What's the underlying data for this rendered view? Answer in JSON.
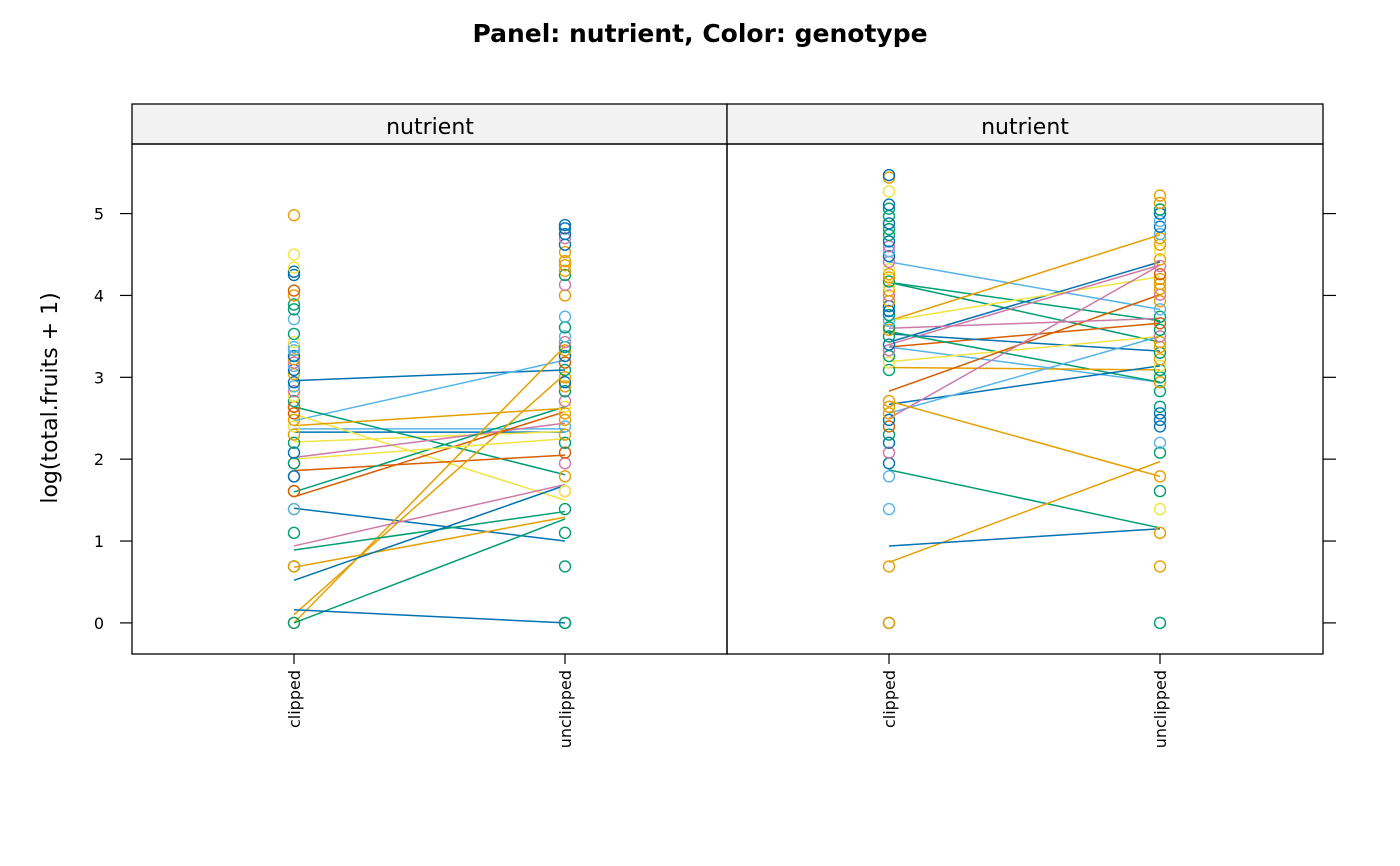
{
  "chart_data": {
    "type": "scatter",
    "title": "Panel: nutrient, Color: genotype",
    "xlabel": "",
    "ylabel": "log(total.fruits + 1)",
    "x_categories": [
      "clipped",
      "unclipped"
    ],
    "ylim": [
      -0.38,
      5.85
    ],
    "y_ticks": [
      0,
      1,
      2,
      3,
      4,
      5
    ],
    "grid": false,
    "legend": "none",
    "panel_colors": {
      "strip_bg": "#f2f2f2",
      "border": "#000000"
    },
    "palette": [
      "#0072B2",
      "#56B4E9",
      "#009E73",
      "#E69F00",
      "#F0E442",
      "#D55E00",
      "#CC79A7"
    ],
    "panels": [
      {
        "strip": "nutrient",
        "points": {
          "clipped": [
            [
              0,
              3
            ],
            [
              0,
              2
            ],
            [
              0.69,
              2
            ],
            [
              0.69,
              3
            ],
            [
              1.1,
              2
            ],
            [
              1.39,
              3
            ],
            [
              1.39,
              1
            ],
            [
              1.61,
              3
            ],
            [
              1.61,
              5
            ],
            [
              1.79,
              6
            ],
            [
              1.79,
              0
            ],
            [
              1.95,
              6
            ],
            [
              1.95,
              2
            ],
            [
              2.08,
              0
            ],
            [
              2.2,
              4
            ],
            [
              2.2,
              2
            ],
            [
              2.3,
              3
            ],
            [
              2.4,
              4
            ],
            [
              2.48,
              3
            ],
            [
              2.56,
              5
            ],
            [
              2.64,
              3
            ],
            [
              2.64,
              5
            ],
            [
              2.71,
              2
            ],
            [
              2.77,
              4
            ],
            [
              2.83,
              6
            ],
            [
              2.89,
              1
            ],
            [
              2.94,
              0
            ],
            [
              3.04,
              3
            ],
            [
              3.09,
              0
            ],
            [
              3.14,
              1
            ],
            [
              3.18,
              6
            ],
            [
              3.22,
              3
            ],
            [
              3.26,
              0
            ],
            [
              3.33,
              1
            ],
            [
              3.37,
              1
            ],
            [
              3.43,
              4
            ],
            [
              3.53,
              2
            ],
            [
              3.71,
              1
            ],
            [
              3.83,
              2
            ],
            [
              3.89,
              2
            ],
            [
              4.0,
              3
            ],
            [
              4.06,
              5
            ],
            [
              4.25,
              0
            ],
            [
              4.29,
              0
            ],
            [
              4.34,
              4
            ],
            [
              4.5,
              4
            ],
            [
              4.98,
              3
            ]
          ],
          "unclipped": [
            [
              0,
              0
            ],
            [
              0,
              2
            ],
            [
              0.69,
              2
            ],
            [
              1.1,
              2
            ],
            [
              1.39,
              2
            ],
            [
              1.61,
              6
            ],
            [
              1.61,
              4
            ],
            [
              1.79,
              3
            ],
            [
              1.95,
              6
            ],
            [
              2.08,
              5
            ],
            [
              2.2,
              2
            ],
            [
              2.3,
              3
            ],
            [
              2.4,
              1
            ],
            [
              2.48,
              3
            ],
            [
              2.56,
              3
            ],
            [
              2.64,
              4
            ],
            [
              2.71,
              6
            ],
            [
              2.83,
              2
            ],
            [
              2.89,
              3
            ],
            [
              2.94,
              0
            ],
            [
              3.0,
              3
            ],
            [
              3.09,
              2
            ],
            [
              3.18,
              5
            ],
            [
              3.26,
              0
            ],
            [
              3.33,
              3
            ],
            [
              3.37,
              2
            ],
            [
              3.43,
              6
            ],
            [
              3.5,
              1
            ],
            [
              3.61,
              2
            ],
            [
              3.74,
              1
            ],
            [
              4.0,
              3
            ],
            [
              4.13,
              6
            ],
            [
              4.25,
              2
            ],
            [
              4.3,
              3
            ],
            [
              4.37,
              3
            ],
            [
              4.42,
              3
            ],
            [
              4.53,
              3
            ],
            [
              4.62,
              0
            ],
            [
              4.7,
              6
            ],
            [
              4.75,
              0
            ],
            [
              4.82,
              0
            ],
            [
              4.86,
              0
            ]
          ]
        },
        "lines": [
          {
            "c": 0,
            "y": [
              2.96,
              3.09
            ]
          },
          {
            "c": 1,
            "y": [
              2.47,
              3.21
            ]
          },
          {
            "c": 1,
            "y": [
              2.37,
              2.37
            ]
          },
          {
            "c": 0,
            "y": [
              2.33,
              2.33
            ]
          },
          {
            "c": 4,
            "y": [
              2.21,
              2.34
            ]
          },
          {
            "c": 2,
            "y": [
              2.64,
              1.81
            ]
          },
          {
            "c": 4,
            "y": [
              2.55,
              1.5
            ]
          },
          {
            "c": 6,
            "y": [
              2.02,
              2.44
            ]
          },
          {
            "c": 5,
            "y": [
              1.86,
              2.05
            ]
          },
          {
            "c": 5,
            "y": [
              1.54,
              2.58
            ]
          },
          {
            "c": 2,
            "y": [
              1.6,
              2.64
            ]
          },
          {
            "c": 0,
            "y": [
              1.4,
              1.0
            ]
          },
          {
            "c": 3,
            "y": [
              0.0,
              3.38
            ]
          },
          {
            "c": 3,
            "y": [
              0.1,
              3.04
            ]
          },
          {
            "c": 6,
            "y": [
              0.94,
              1.69
            ]
          },
          {
            "c": 2,
            "y": [
              0.89,
              1.36
            ]
          },
          {
            "c": 3,
            "y": [
              0.68,
              1.29
            ]
          },
          {
            "c": 0,
            "y": [
              0.52,
              1.68
            ]
          },
          {
            "c": 2,
            "y": [
              0.0,
              1.27
            ]
          },
          {
            "c": 0,
            "y": [
              0.16,
              0.0
            ]
          },
          {
            "c": 4,
            "y": [
              2.0,
              2.25
            ]
          },
          {
            "c": 3,
            "y": [
              2.41,
              2.62
            ]
          }
        ]
      },
      {
        "strip": "nutrient",
        "points": {
          "clipped": [
            [
              0,
              2
            ],
            [
              0,
              3
            ],
            [
              0.69,
              3
            ],
            [
              1.39,
              1
            ],
            [
              1.79,
              1
            ],
            [
              1.95,
              0
            ],
            [
              2.08,
              6
            ],
            [
              2.2,
              0
            ],
            [
              2.3,
              2
            ],
            [
              2.4,
              5
            ],
            [
              2.48,
              0
            ],
            [
              2.56,
              3
            ],
            [
              2.64,
              3
            ],
            [
              2.71,
              3
            ],
            [
              3.09,
              2
            ],
            [
              3.18,
              4
            ],
            [
              3.26,
              2
            ],
            [
              3.33,
              6
            ],
            [
              3.4,
              0
            ],
            [
              3.5,
              2
            ],
            [
              3.58,
              3
            ],
            [
              3.61,
              2
            ],
            [
              3.69,
              1
            ],
            [
              3.76,
              2
            ],
            [
              3.81,
              0
            ],
            [
              3.87,
              0
            ],
            [
              3.93,
              3
            ],
            [
              4.0,
              6
            ],
            [
              4.06,
              3
            ],
            [
              4.11,
              4
            ],
            [
              4.17,
              2
            ],
            [
              4.22,
              3
            ],
            [
              4.26,
              3
            ],
            [
              4.32,
              4
            ],
            [
              4.41,
              6
            ],
            [
              4.48,
              0
            ],
            [
              4.54,
              1
            ],
            [
              4.6,
              6
            ],
            [
              4.66,
              0
            ],
            [
              4.74,
              2
            ],
            [
              4.81,
              2
            ],
            [
              4.88,
              0
            ],
            [
              4.97,
              2
            ],
            [
              5.06,
              2
            ],
            [
              5.11,
              0
            ],
            [
              5.27,
              4
            ],
            [
              5.44,
              3
            ],
            [
              5.47,
              0
            ]
          ],
          "unclipped": [
            [
              0,
              2
            ],
            [
              0.69,
              3
            ],
            [
              1.1,
              3
            ],
            [
              1.39,
              4
            ],
            [
              1.61,
              2
            ],
            [
              1.79,
              3
            ],
            [
              2.08,
              2
            ],
            [
              2.2,
              1
            ],
            [
              2.4,
              0
            ],
            [
              2.48,
              0
            ],
            [
              2.56,
              0
            ],
            [
              2.64,
              2
            ],
            [
              2.83,
              2
            ],
            [
              2.94,
              3
            ],
            [
              3.0,
              2
            ],
            [
              3.09,
              2
            ],
            [
              3.14,
              4
            ],
            [
              3.22,
              3
            ],
            [
              3.3,
              2
            ],
            [
              3.37,
              3
            ],
            [
              3.43,
              3
            ],
            [
              3.5,
              6
            ],
            [
              3.58,
              2
            ],
            [
              3.66,
              5
            ],
            [
              3.74,
              2
            ],
            [
              3.83,
              1
            ],
            [
              3.93,
              3
            ],
            [
              4.01,
              6
            ],
            [
              4.08,
              3
            ],
            [
              4.14,
              3
            ],
            [
              4.2,
              3
            ],
            [
              4.26,
              5
            ],
            [
              4.36,
              6
            ],
            [
              4.44,
              3
            ],
            [
              4.55,
              4
            ],
            [
              4.62,
              3
            ],
            [
              4.7,
              3
            ],
            [
              4.75,
              1
            ],
            [
              4.84,
              0
            ],
            [
              4.91,
              1
            ],
            [
              5.0,
              0
            ],
            [
              5.05,
              2
            ],
            [
              5.13,
              3
            ],
            [
              5.22,
              3
            ]
          ]
        },
        "lines": [
          {
            "c": 1,
            "y": [
              4.41,
              3.83
            ]
          },
          {
            "c": 2,
            "y": [
              4.16,
              3.69
            ]
          },
          {
            "c": 2,
            "y": [
              4.16,
              3.43
            ]
          },
          {
            "c": 3,
            "y": [
              3.69,
              4.74
            ]
          },
          {
            "c": 0,
            "y": [
              3.43,
              4.41
            ]
          },
          {
            "c": 4,
            "y": [
              3.69,
              4.23
            ]
          },
          {
            "c": 5,
            "y": [
              3.37,
              3.66
            ]
          },
          {
            "c": 0,
            "y": [
              3.53,
              3.32
            ]
          },
          {
            "c": 6,
            "y": [
              3.4,
              4.37
            ]
          },
          {
            "c": 1,
            "y": [
              3.37,
              2.94
            ]
          },
          {
            "c": 2,
            "y": [
              3.56,
              2.94
            ]
          },
          {
            "c": 4,
            "y": [
              3.19,
              3.5
            ]
          },
          {
            "c": 3,
            "y": [
              3.12,
              3.09
            ]
          },
          {
            "c": 5,
            "y": [
              2.83,
              4.01
            ]
          },
          {
            "c": 0,
            "y": [
              2.67,
              3.14
            ]
          },
          {
            "c": 1,
            "y": [
              2.56,
              3.5
            ]
          },
          {
            "c": 6,
            "y": [
              2.5,
              4.37
            ]
          },
          {
            "c": 3,
            "y": [
              2.71,
              1.79
            ]
          },
          {
            "c": 2,
            "y": [
              1.87,
              1.16
            ]
          },
          {
            "c": 3,
            "y": [
              0.74,
              1.97
            ]
          },
          {
            "c": 0,
            "y": [
              0.94,
              1.15
            ]
          },
          {
            "c": 6,
            "y": [
              3.6,
              3.72
            ]
          }
        ]
      }
    ]
  }
}
